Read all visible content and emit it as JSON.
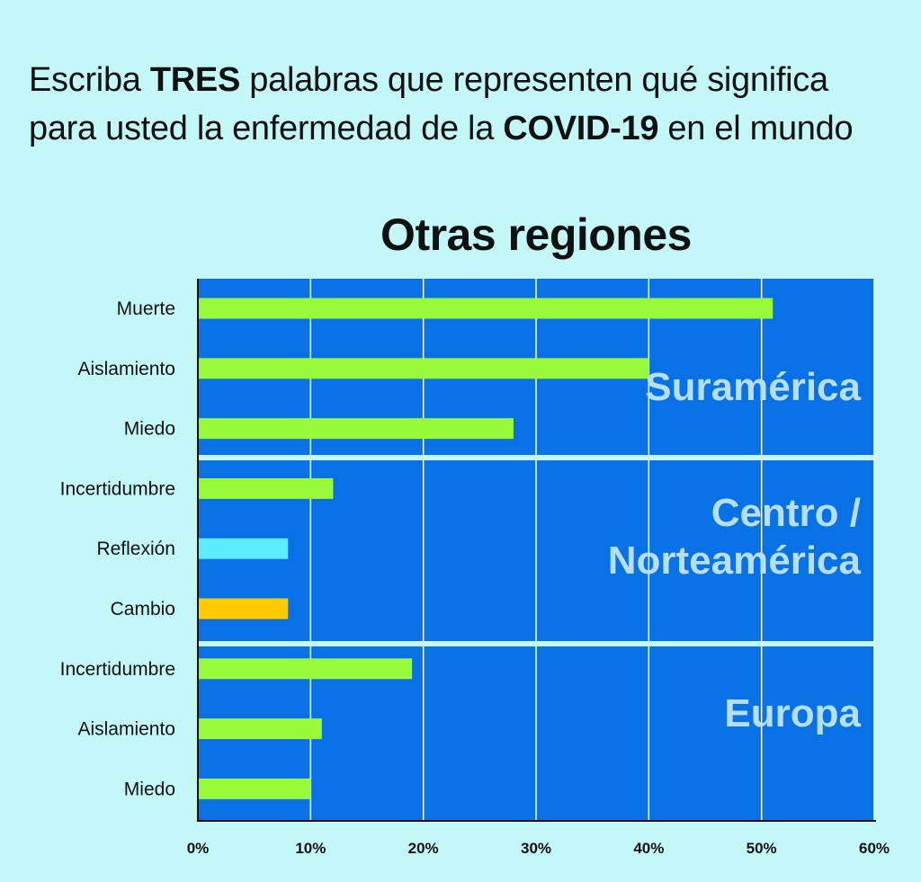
{
  "question": {
    "part1": "Escriba ",
    "bold1": "TRES",
    "part2": " palabras que representen qué significa",
    "part3": "para usted la enfermedad de la ",
    "bold2": "COVID-19",
    "part4": " en el mundo"
  },
  "chart_data": {
    "type": "bar",
    "orientation": "horizontal",
    "title": "Otras regiones",
    "xlim": [
      0,
      60
    ],
    "x_ticks": [
      "0%",
      "10%",
      "20%",
      "30%",
      "40%",
      "50%",
      "60%"
    ],
    "grid": true,
    "colors": {
      "background": "#c4f7f7",
      "plot": "#0871e6",
      "default_bar": "#99fa3a",
      "reflexion": "#5cecff",
      "cambio": "#ffcc00",
      "region_text": "#b6dff5"
    },
    "groups": [
      {
        "region": [
          "Suramérica"
        ],
        "bars": [
          {
            "label": "Muerte",
            "value": 51,
            "color": "#99fa3a"
          },
          {
            "label": "Aislamiento",
            "value": 40,
            "color": "#99fa3a"
          },
          {
            "label": "Miedo",
            "value": 28,
            "color": "#99fa3a"
          }
        ]
      },
      {
        "region": [
          "Centro /",
          "Norteamérica"
        ],
        "bars": [
          {
            "label": "Incertidumbre",
            "value": 12,
            "color": "#99fa3a"
          },
          {
            "label": "Reflexión",
            "value": 8,
            "color": "#5cecff"
          },
          {
            "label": "Cambio",
            "value": 8,
            "color": "#ffcc00"
          }
        ]
      },
      {
        "region": [
          "Europa"
        ],
        "bars": [
          {
            "label": "Incertidumbre",
            "value": 19,
            "color": "#99fa3a"
          },
          {
            "label": "Aislamiento",
            "value": 11,
            "color": "#99fa3a"
          },
          {
            "label": "Miedo",
            "value": 10,
            "color": "#99fa3a"
          }
        ]
      }
    ]
  }
}
